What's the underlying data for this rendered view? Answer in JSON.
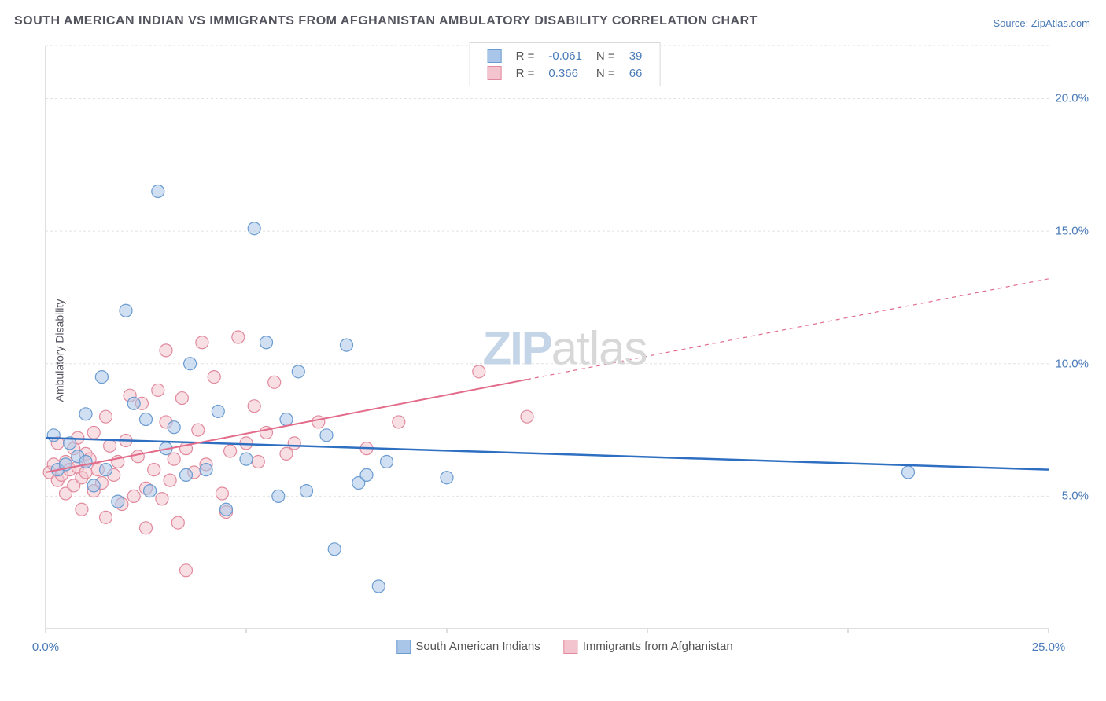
{
  "title": "SOUTH AMERICAN INDIAN VS IMMIGRANTS FROM AFGHANISTAN AMBULATORY DISABILITY CORRELATION CHART",
  "source": "Source: ZipAtlas.com",
  "ylabel": "Ambulatory Disability",
  "watermark": {
    "part1": "ZIP",
    "part2": "atlas"
  },
  "chart": {
    "type": "scatter",
    "xlim": [
      0,
      25
    ],
    "ylim": [
      0,
      22
    ],
    "y_ticks": [
      5,
      10,
      15,
      20
    ],
    "y_tick_labels": [
      "5.0%",
      "10.0%",
      "15.0%",
      "20.0%"
    ],
    "x_ticks": [
      0,
      5,
      10,
      15,
      20,
      25
    ],
    "x_tick_labels": [
      "0.0%",
      "",
      "",
      "",
      "",
      "25.0%"
    ],
    "grid_color": "#e2e2e2",
    "background_color": "#ffffff",
    "axis_color": "#bfbfbf",
    "marker_radius": 8,
    "marker_opacity": 0.55,
    "series": [
      {
        "name": "South American Indians",
        "color_fill": "#a9c6e8",
        "color_stroke": "#6a9bd1",
        "regression": {
          "y0": 7.2,
          "y1": 6.0,
          "color": "#2e6fc1",
          "width": 2.5,
          "solid_until_x": 25
        },
        "stats": {
          "R": "-0.061",
          "N": "39"
        },
        "points": [
          [
            0.2,
            7.3
          ],
          [
            0.3,
            6.0
          ],
          [
            0.5,
            6.2
          ],
          [
            0.6,
            7.0
          ],
          [
            0.8,
            6.5
          ],
          [
            1.0,
            6.3
          ],
          [
            1.0,
            8.1
          ],
          [
            1.2,
            5.4
          ],
          [
            1.4,
            9.5
          ],
          [
            1.5,
            6.0
          ],
          [
            1.8,
            4.8
          ],
          [
            2.0,
            12.0
          ],
          [
            2.2,
            8.5
          ],
          [
            2.5,
            7.9
          ],
          [
            2.6,
            5.2
          ],
          [
            2.8,
            16.5
          ],
          [
            3.0,
            6.8
          ],
          [
            3.2,
            7.6
          ],
          [
            3.5,
            5.8
          ],
          [
            3.6,
            10.0
          ],
          [
            4.0,
            6.0
          ],
          [
            4.3,
            8.2
          ],
          [
            4.5,
            4.5
          ],
          [
            5.0,
            6.4
          ],
          [
            5.2,
            15.1
          ],
          [
            5.5,
            10.8
          ],
          [
            5.8,
            5.0
          ],
          [
            6.0,
            7.9
          ],
          [
            6.3,
            9.7
          ],
          [
            6.5,
            5.2
          ],
          [
            7.0,
            7.3
          ],
          [
            7.2,
            3.0
          ],
          [
            7.5,
            10.7
          ],
          [
            7.8,
            5.5
          ],
          [
            8.0,
            5.8
          ],
          [
            8.3,
            1.6
          ],
          [
            8.5,
            6.3
          ],
          [
            10.0,
            5.7
          ],
          [
            21.5,
            5.9
          ]
        ]
      },
      {
        "name": "Immigrants from Afghanistan",
        "color_fill": "#f3c4cd",
        "color_stroke": "#e18a9d",
        "regression": {
          "y0": 5.9,
          "y1": 13.2,
          "color": "#e26b8a",
          "width": 2,
          "solid_until_x": 12
        },
        "stats": {
          "R": "0.366",
          "N": "66"
        },
        "points": [
          [
            0.1,
            5.9
          ],
          [
            0.2,
            6.2
          ],
          [
            0.3,
            5.6
          ],
          [
            0.3,
            7.0
          ],
          [
            0.4,
            5.8
          ],
          [
            0.5,
            6.3
          ],
          [
            0.5,
            5.1
          ],
          [
            0.6,
            6.0
          ],
          [
            0.7,
            6.8
          ],
          [
            0.7,
            5.4
          ],
          [
            0.8,
            6.1
          ],
          [
            0.8,
            7.2
          ],
          [
            0.9,
            5.7
          ],
          [
            0.9,
            4.5
          ],
          [
            1.0,
            6.6
          ],
          [
            1.0,
            5.9
          ],
          [
            1.1,
            6.4
          ],
          [
            1.2,
            5.2
          ],
          [
            1.2,
            7.4
          ],
          [
            1.3,
            6.0
          ],
          [
            1.4,
            5.5
          ],
          [
            1.5,
            8.0
          ],
          [
            1.5,
            4.2
          ],
          [
            1.6,
            6.9
          ],
          [
            1.7,
            5.8
          ],
          [
            1.8,
            6.3
          ],
          [
            1.9,
            4.7
          ],
          [
            2.0,
            7.1
          ],
          [
            2.1,
            8.8
          ],
          [
            2.2,
            5.0
          ],
          [
            2.3,
            6.5
          ],
          [
            2.4,
            8.5
          ],
          [
            2.5,
            5.3
          ],
          [
            2.5,
            3.8
          ],
          [
            2.7,
            6.0
          ],
          [
            2.8,
            9.0
          ],
          [
            2.9,
            4.9
          ],
          [
            3.0,
            7.8
          ],
          [
            3.0,
            10.5
          ],
          [
            3.1,
            5.6
          ],
          [
            3.2,
            6.4
          ],
          [
            3.3,
            4.0
          ],
          [
            3.4,
            8.7
          ],
          [
            3.5,
            6.8
          ],
          [
            3.5,
            2.2
          ],
          [
            3.7,
            5.9
          ],
          [
            3.8,
            7.5
          ],
          [
            3.9,
            10.8
          ],
          [
            4.0,
            6.2
          ],
          [
            4.2,
            9.5
          ],
          [
            4.4,
            5.1
          ],
          [
            4.5,
            4.4
          ],
          [
            4.6,
            6.7
          ],
          [
            4.8,
            11.0
          ],
          [
            5.0,
            7.0
          ],
          [
            5.2,
            8.4
          ],
          [
            5.3,
            6.3
          ],
          [
            5.5,
            7.4
          ],
          [
            5.7,
            9.3
          ],
          [
            6.0,
            6.6
          ],
          [
            6.2,
            7.0
          ],
          [
            6.8,
            7.8
          ],
          [
            8.0,
            6.8
          ],
          [
            8.8,
            7.8
          ],
          [
            10.8,
            9.7
          ],
          [
            12.0,
            8.0
          ]
        ]
      }
    ]
  }
}
